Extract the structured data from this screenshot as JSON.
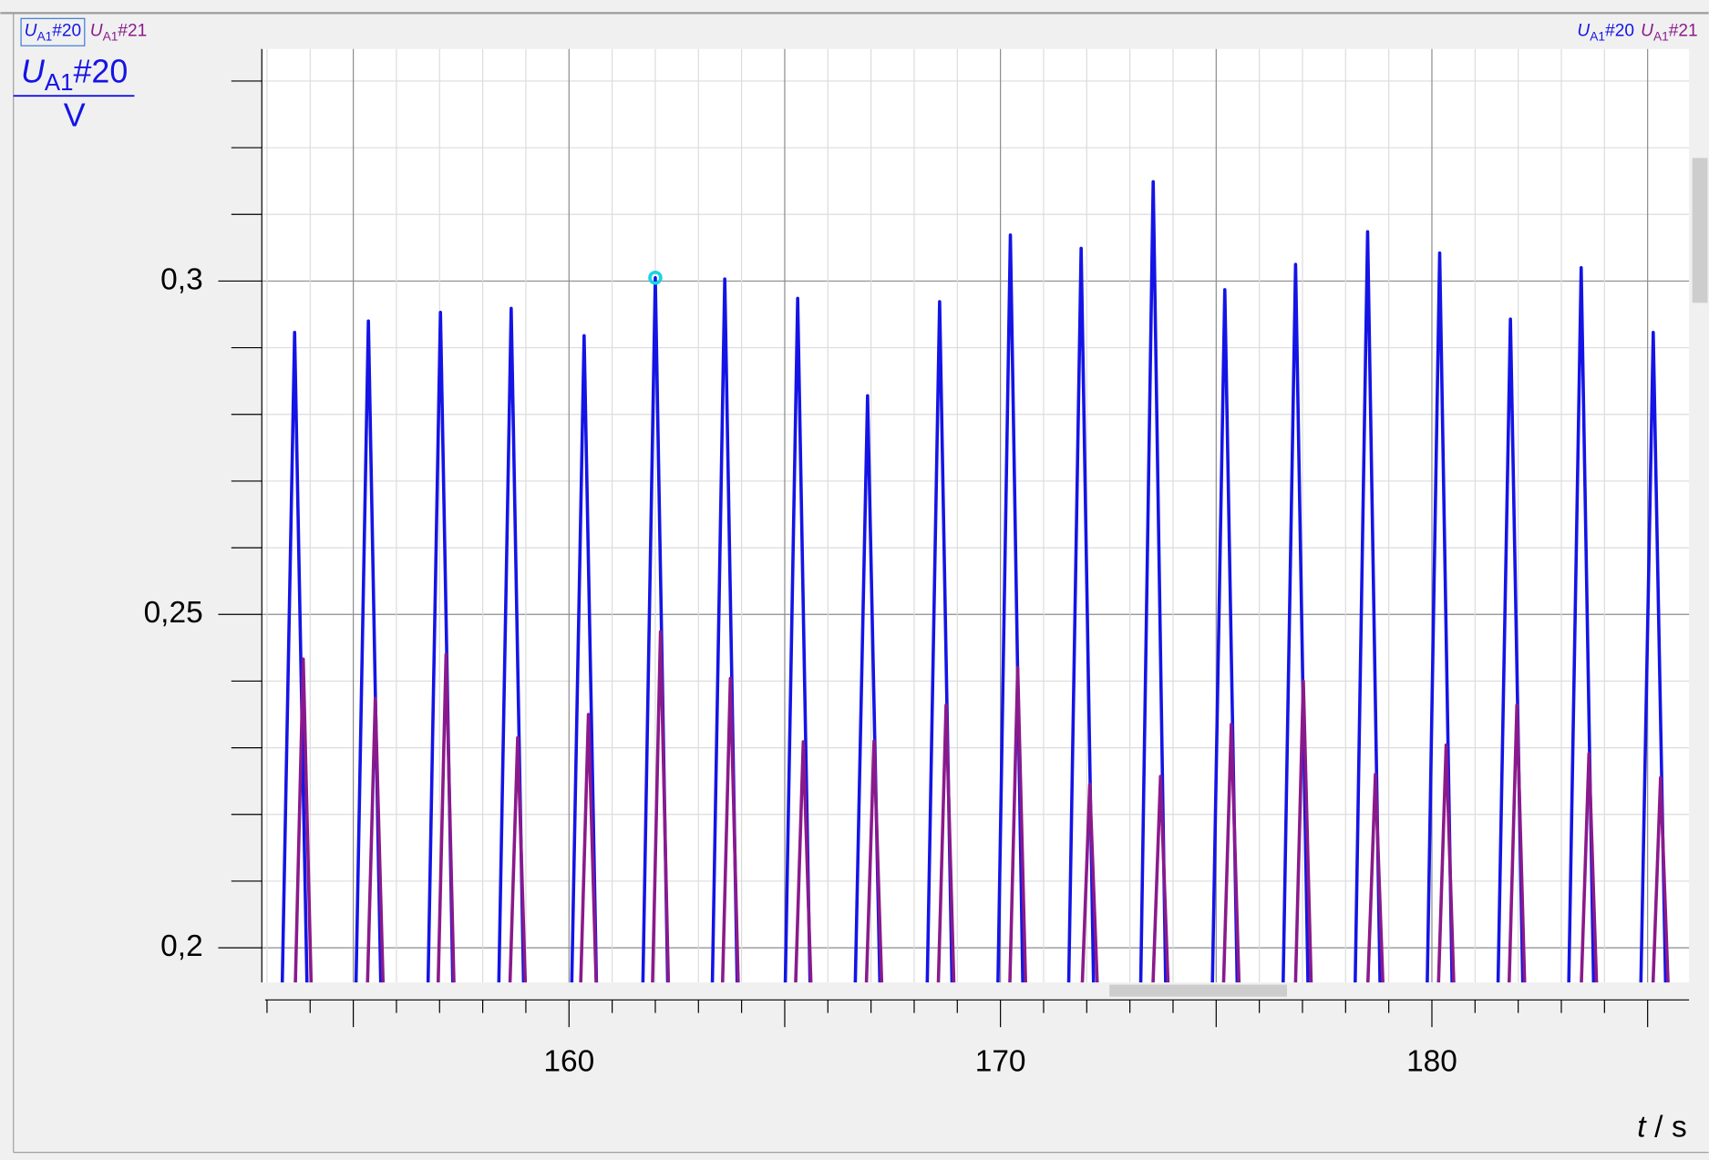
{
  "chart_data": {
    "type": "line",
    "xlim": [
      152.88,
      185.96
    ],
    "ylim": [
      0.1948,
      0.3348
    ],
    "xticks": [
      160,
      170,
      180
    ],
    "xmidticks": [
      155,
      165,
      175,
      185
    ],
    "xminorticks": [
      153,
      154,
      156,
      157,
      158,
      159,
      161,
      162,
      163,
      164,
      166,
      167,
      168,
      169,
      171,
      172,
      173,
      174,
      176,
      177,
      178,
      179,
      181,
      182,
      183,
      184
    ],
    "yticks": [
      {
        "value": 0.2,
        "label": "0,2"
      },
      {
        "value": 0.25,
        "label": "0,25"
      },
      {
        "value": 0.3,
        "label": "0,3"
      }
    ],
    "yminorticks": [
      0.21,
      0.22,
      0.23,
      0.24,
      0.26,
      0.27,
      0.28,
      0.29,
      0.31,
      0.32,
      0.33
    ],
    "grid": true,
    "ylabel": {
      "symbol": "U",
      "subscript": "A1",
      "suffix": "#20",
      "unit": "V"
    },
    "xlabel": {
      "symbol": "t",
      "separator": "/",
      "unit": "s"
    },
    "highlight": {
      "series": 0,
      "index": 16,
      "color": "#19d3e6"
    },
    "series": [
      {
        "symbol": "U",
        "subscript": "A1",
        "suffix": "#20",
        "color": "#1414e6",
        "x": [
          153.34,
          153.64,
          153.94,
          155.05,
          155.35,
          155.65,
          156.72,
          157.02,
          157.32,
          158.36,
          158.66,
          158.96,
          160.05,
          160.35,
          160.65,
          161.7,
          162.0,
          162.3,
          163.31,
          163.61,
          163.91,
          165.0,
          165.3,
          165.6,
          166.62,
          166.92,
          167.22,
          168.29,
          168.59,
          168.89,
          169.93,
          170.23,
          170.53,
          171.57,
          171.87,
          172.17,
          173.24,
          173.54,
          173.84,
          174.9,
          175.2,
          175.5,
          176.54,
          176.84,
          177.14,
          178.21,
          178.51,
          178.81,
          179.88,
          180.18,
          180.48,
          181.52,
          181.82,
          182.12,
          183.16,
          183.46,
          183.76,
          184.83,
          185.13,
          185.43
        ],
        "values": [
          0.19,
          0.2923,
          0.19,
          0.19,
          0.294,
          0.19,
          0.19,
          0.2953,
          0.19,
          0.19,
          0.2959,
          0.19,
          0.19,
          0.2918,
          0.19,
          0.19,
          0.3005,
          0.19,
          0.19,
          0.3003,
          0.19,
          0.19,
          0.2974,
          0.19,
          0.19,
          0.2828,
          0.19,
          0.19,
          0.2969,
          0.19,
          0.19,
          0.3069,
          0.19,
          0.19,
          0.3049,
          0.19,
          0.19,
          0.3149,
          0.19,
          0.19,
          0.2987,
          0.19,
          0.19,
          0.3025,
          0.19,
          0.19,
          0.3074,
          0.19,
          0.19,
          0.3042,
          0.19,
          0.19,
          0.2943,
          0.19,
          0.19,
          0.302,
          0.19,
          0.19,
          0.2923,
          0.19
        ]
      },
      {
        "symbol": "U",
        "subscript": "A1",
        "suffix": "#21",
        "color": "#8a1a8c",
        "x": [
          153.64,
          153.84,
          154.04,
          155.31,
          155.51,
          155.71,
          156.95,
          157.15,
          157.35,
          158.61,
          158.81,
          159.01,
          160.25,
          160.45,
          160.65,
          161.92,
          162.12,
          162.32,
          163.54,
          163.74,
          163.94,
          165.23,
          165.43,
          165.63,
          166.87,
          167.07,
          167.27,
          168.54,
          168.74,
          168.94,
          170.2,
          170.4,
          170.6,
          171.87,
          172.07,
          172.27,
          173.51,
          173.71,
          173.91,
          175.15,
          175.35,
          175.55,
          176.82,
          177.02,
          177.22,
          178.49,
          178.69,
          178.89,
          180.13,
          180.33,
          180.53,
          181.77,
          181.97,
          182.17,
          183.44,
          183.64,
          183.84,
          185.1,
          185.3,
          185.5
        ],
        "values": [
          0.19,
          0.2433,
          0.19,
          0.19,
          0.2374,
          0.19,
          0.19,
          0.244,
          0.19,
          0.19,
          0.2315,
          0.19,
          0.19,
          0.235,
          0.19,
          0.19,
          0.2474,
          0.19,
          0.19,
          0.2404,
          0.19,
          0.19,
          0.2309,
          0.19,
          0.19,
          0.231,
          0.19,
          0.19,
          0.2364,
          0.19,
          0.19,
          0.242,
          0.19,
          0.19,
          0.2245,
          0.19,
          0.19,
          0.2257,
          0.19,
          0.19,
          0.2335,
          0.19,
          0.19,
          0.24,
          0.19,
          0.19,
          0.226,
          0.19,
          0.19,
          0.2304,
          0.19,
          0.19,
          0.2364,
          0.19,
          0.19,
          0.2291,
          0.19,
          0.19,
          0.2255,
          0.19
        ]
      }
    ]
  }
}
